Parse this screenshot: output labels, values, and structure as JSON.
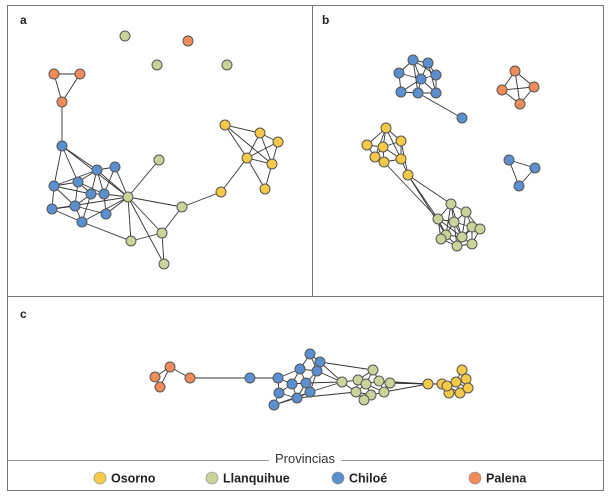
{
  "colors": {
    "Osorno": "#f7c948",
    "Llanquihue": "#c9d39a",
    "Chiloe": "#5b8fcf",
    "Palena": "#f08c5a",
    "edge": "#333333",
    "node_stroke": "#555555",
    "frame": "#777777"
  },
  "panels": {
    "a": {
      "label": "a"
    },
    "b": {
      "label": "b"
    },
    "c": {
      "label": "c"
    }
  },
  "legend": {
    "title": "Provincias",
    "items": [
      {
        "label": "Osorno",
        "color_key": "Osorno",
        "icon": "osorno-dot-icon"
      },
      {
        "label": "Llanquihue",
        "color_key": "Llanquihue",
        "icon": "llanquihue-dot-icon"
      },
      {
        "label": "Chiloé",
        "color_key": "Chiloe",
        "icon": "chiloe-dot-icon"
      },
      {
        "label": "Palena",
        "color_key": "Palena",
        "icon": "palena-dot-icon"
      }
    ]
  },
  "graph": {
    "node_counts": {
      "Osorno": 9,
      "Llanquihue": 10,
      "Chiloe": 14,
      "Palena": 4
    },
    "panel_a_isolated_nodes": [
      "Llanquihue",
      "Palena",
      "Llanquihue",
      "Llanquihue"
    ],
    "panel_b_components": [
      "Chiloé cluster",
      "Palena cluster",
      "Chiloé triad",
      "Osorno cluster",
      "Llanquihue cluster"
    ],
    "panel_c_order": [
      "Palena",
      "Chiloé",
      "Llanquihue",
      "Osorno"
    ]
  }
}
